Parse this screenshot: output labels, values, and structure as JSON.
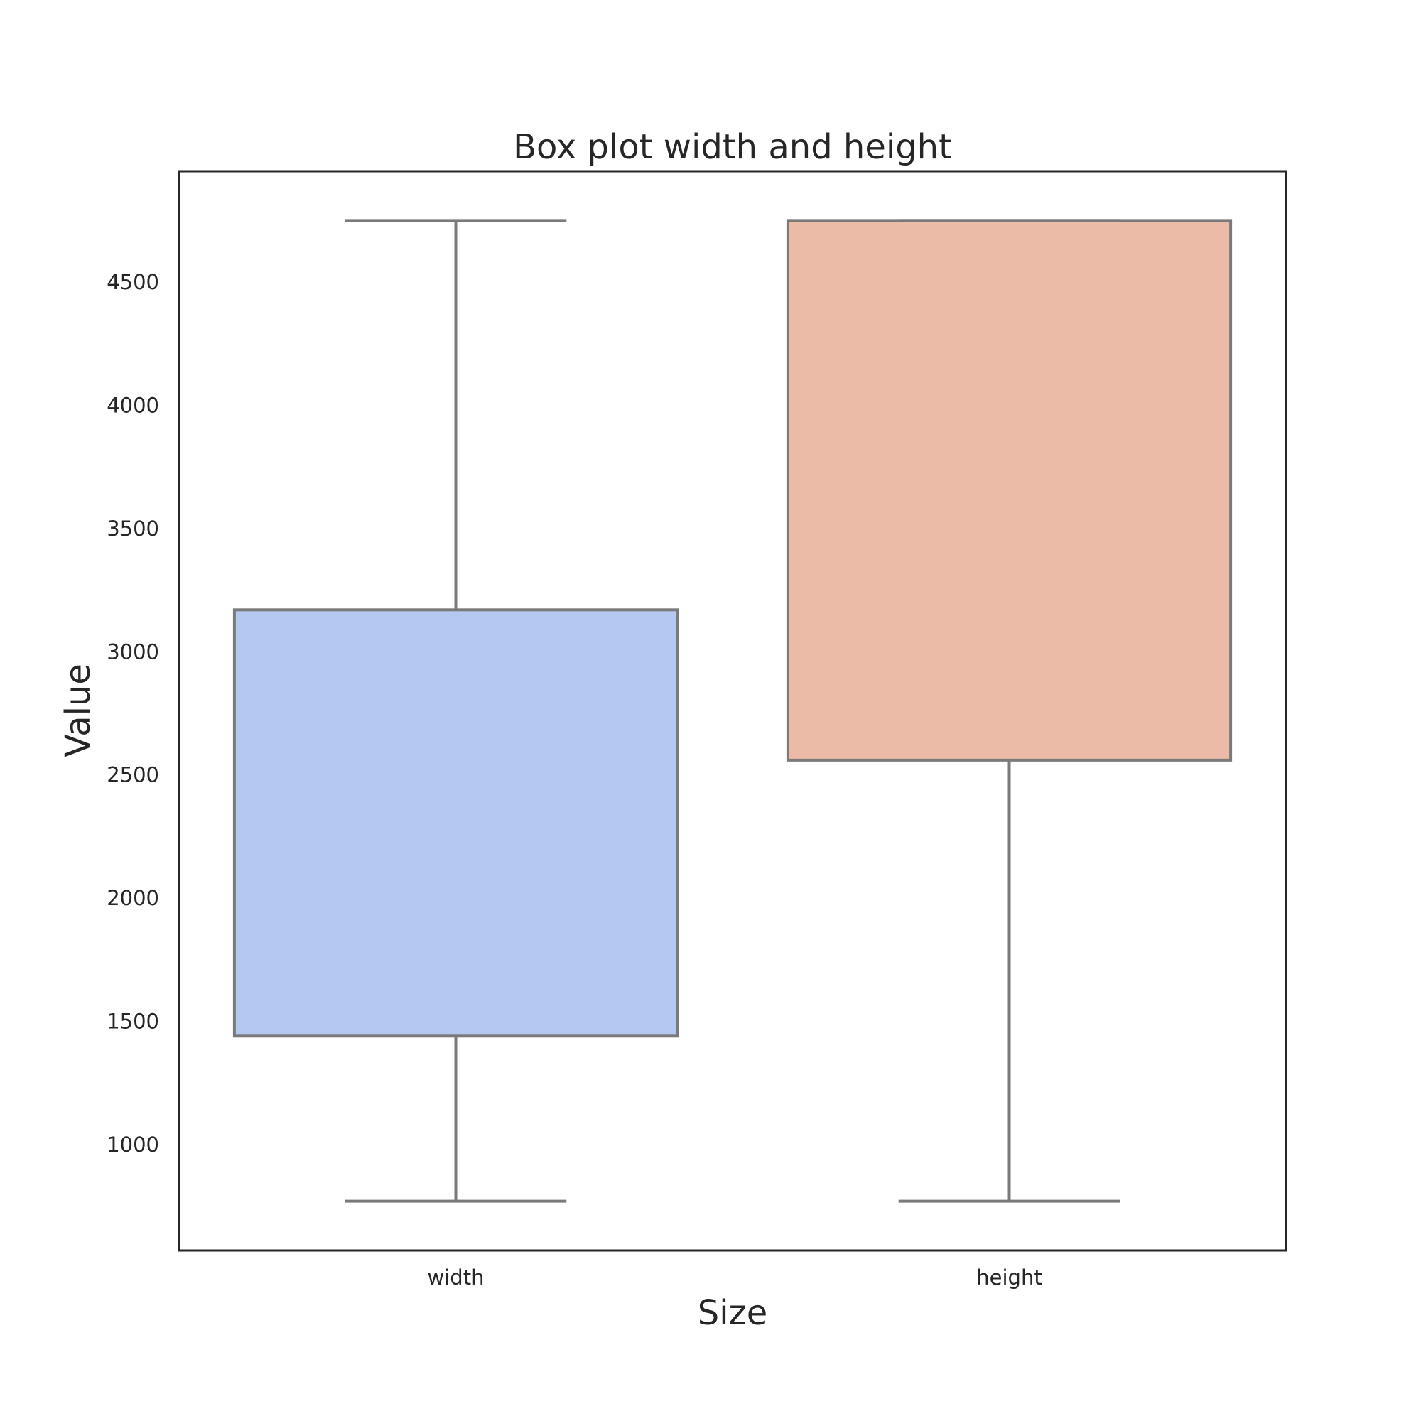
{
  "chart_data": {
    "type": "box",
    "title": "Box plot width and height",
    "xlabel": "Size",
    "ylabel": "Value",
    "categories": [
      "width",
      "height"
    ],
    "ylim": [
      570,
      4950
    ],
    "yticks": [
      1000,
      1500,
      2000,
      2500,
      3000,
      3500,
      4000,
      4500
    ],
    "grid": false,
    "series": [
      {
        "category": "width",
        "whisker_low": 770,
        "q1": 1440,
        "q3": 3170,
        "whisker_high": 4750,
        "color": "#b5c8f2"
      },
      {
        "category": "height",
        "whisker_low": 770,
        "q1": 2560,
        "q3": 4750,
        "whisker_high": 4750,
        "color": "#ebbba7"
      }
    ],
    "line_color": "#7a7a7a"
  }
}
